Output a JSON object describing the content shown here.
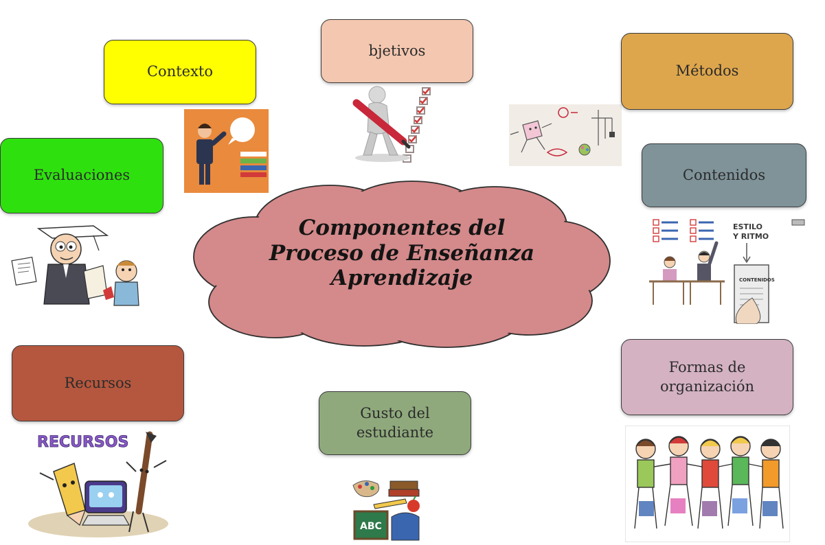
{
  "diagram": {
    "center": {
      "lines": [
        "Componentes del",
        "Proceso de Enseñanza",
        "Aprendizaje"
      ],
      "color": "#d4898a"
    },
    "nodes": {
      "contexto": {
        "label": "Contexto",
        "color": "#ffff00"
      },
      "objetivos": {
        "label": "bjetivos",
        "color": "#f4c7b0"
      },
      "metodos": {
        "label": "Métodos",
        "color": "#dea64c"
      },
      "evaluaciones": {
        "label": "Evaluaciones",
        "color": "#2ee10e"
      },
      "contenidos": {
        "label": "Contenidos",
        "color": "#7f9399"
      },
      "recursos": {
        "label": "Recursos",
        "color": "#b5573e"
      },
      "gusto": {
        "lines": [
          "Gusto del",
          "estudiante"
        ],
        "color": "#8fa97c"
      },
      "formas": {
        "lines": [
          "Formas de",
          "organización"
        ],
        "color": "#d4b2c2"
      }
    },
    "illustrations": {
      "contexto": {
        "icon": "presenter-speech-bubble-icon"
      },
      "objetivos": {
        "icon": "figure-with-pencil-checklist-icon"
      },
      "metodos": {
        "icon": "sketch-methods-icon"
      },
      "evaluaciones": {
        "icon": "graduate-with-diploma-icon"
      },
      "contenidos": {
        "icon": "classroom-checklist-icon",
        "label_1": "ESTILO",
        "label_2": "Y RITMO",
        "label_3": "CONTENIDOS"
      },
      "recursos": {
        "icon": "pencil-computer-brush-icon",
        "word": "RECURSOS"
      },
      "gusto": {
        "icon": "school-supplies-icon",
        "board_text": "ABC"
      },
      "formas": {
        "icon": "children-in-a-row-icon"
      }
    }
  }
}
